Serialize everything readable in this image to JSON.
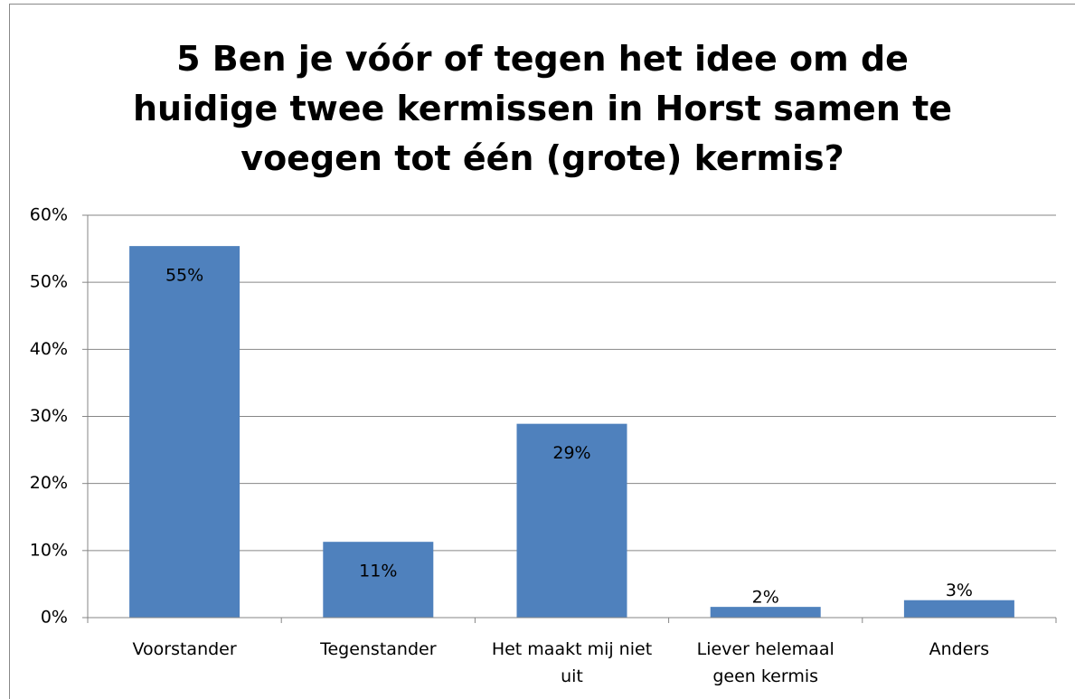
{
  "chart_data": {
    "type": "bar",
    "title": "5 Ben je vóór of tegen het idee om de huidige twee kermissen in Horst samen te voegen tot één (grote) kermis?",
    "categories": [
      "Voorstander",
      "Tegenstander",
      "Het maakt mij niet uit",
      "Liever helemaal geen kermis",
      "Anders"
    ],
    "values": [
      55.4,
      11.3,
      28.9,
      1.6,
      2.6
    ],
    "value_labels": [
      "55%",
      "11%",
      "29%",
      "2%",
      "3%"
    ],
    "color": "#4f81bd",
    "ylim": [
      0,
      60
    ],
    "yticks": [
      {
        "value": 0,
        "label": "0%"
      },
      {
        "value": 10,
        "label": "10%"
      },
      {
        "value": 20,
        "label": "20%"
      },
      {
        "value": 30,
        "label": "30%"
      },
      {
        "value": 40,
        "label": "40%"
      },
      {
        "value": 50,
        "label": "50%"
      },
      {
        "value": 60,
        "label": "60%"
      }
    ],
    "grid": true
  }
}
